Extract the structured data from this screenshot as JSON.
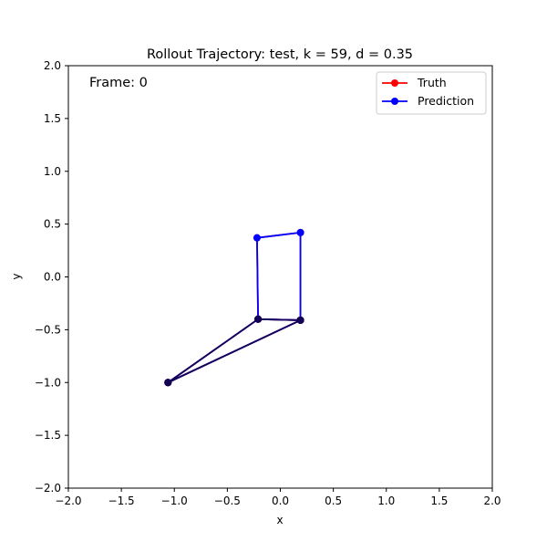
{
  "chart_data": {
    "type": "line",
    "title": "Rollout Trajectory: test, k = 59, d = 0.35",
    "xlabel": "x",
    "ylabel": "y",
    "xlim": [
      -2.0,
      2.0
    ],
    "ylim": [
      -2.0,
      2.0
    ],
    "xticks": [
      "−2.0",
      "−1.5",
      "−1.0",
      "−0.5",
      "0.0",
      "0.5",
      "1.0",
      "1.5",
      "2.0"
    ],
    "yticks": [
      "2.0",
      "1.5",
      "1.0",
      "0.5",
      "0.0",
      "−0.5",
      "−1.0",
      "−1.5",
      "−2.0"
    ],
    "annotation": "Frame: 0",
    "grid": false,
    "legend_position": "top-right",
    "series": [
      {
        "name": "Truth",
        "color": "#ff0000",
        "points": [
          [
            -1.06,
            -1.0
          ],
          [
            0.19,
            -0.41
          ],
          [
            -0.21,
            -0.4
          ],
          [
            -0.22,
            0.37
          ],
          [
            0.19,
            0.42
          ],
          [
            0.19,
            -0.41
          ],
          [
            -0.21,
            -0.4
          ],
          [
            -1.06,
            -1.0
          ]
        ]
      },
      {
        "name": "Prediction",
        "color": "#0000ff",
        "points": [
          [
            -1.06,
            -1.0
          ],
          [
            0.19,
            -0.41
          ],
          [
            -0.21,
            -0.4
          ],
          [
            -0.22,
            0.37
          ],
          [
            0.19,
            0.42
          ],
          [
            0.19,
            -0.41
          ],
          [
            -0.21,
            -0.4
          ],
          [
            -1.06,
            -1.0
          ]
        ]
      }
    ]
  }
}
